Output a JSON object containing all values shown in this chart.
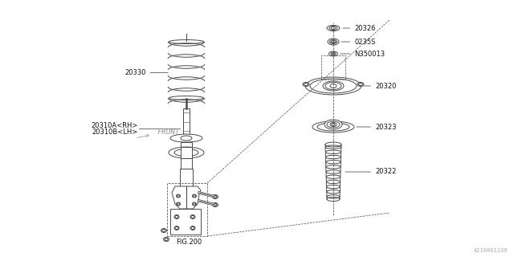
{
  "bg_color": "#ffffff",
  "line_color": "#4a4a4a",
  "text_color": "#111111",
  "fig_width": 6.4,
  "fig_height": 3.2,
  "dpi": 100,
  "doc_id": "A210001139",
  "fig_label": "FIG.200",
  "front_label": "FRONT",
  "label_20330": "20330",
  "label_20310A": "20310A<RH>",
  "label_20310B": "20310B<LH>",
  "label_20326": "20326",
  "label_0235S": "0235S",
  "label_N350013": "N350013",
  "label_20320": "20320",
  "label_20323": "20323",
  "label_20322": "20322"
}
